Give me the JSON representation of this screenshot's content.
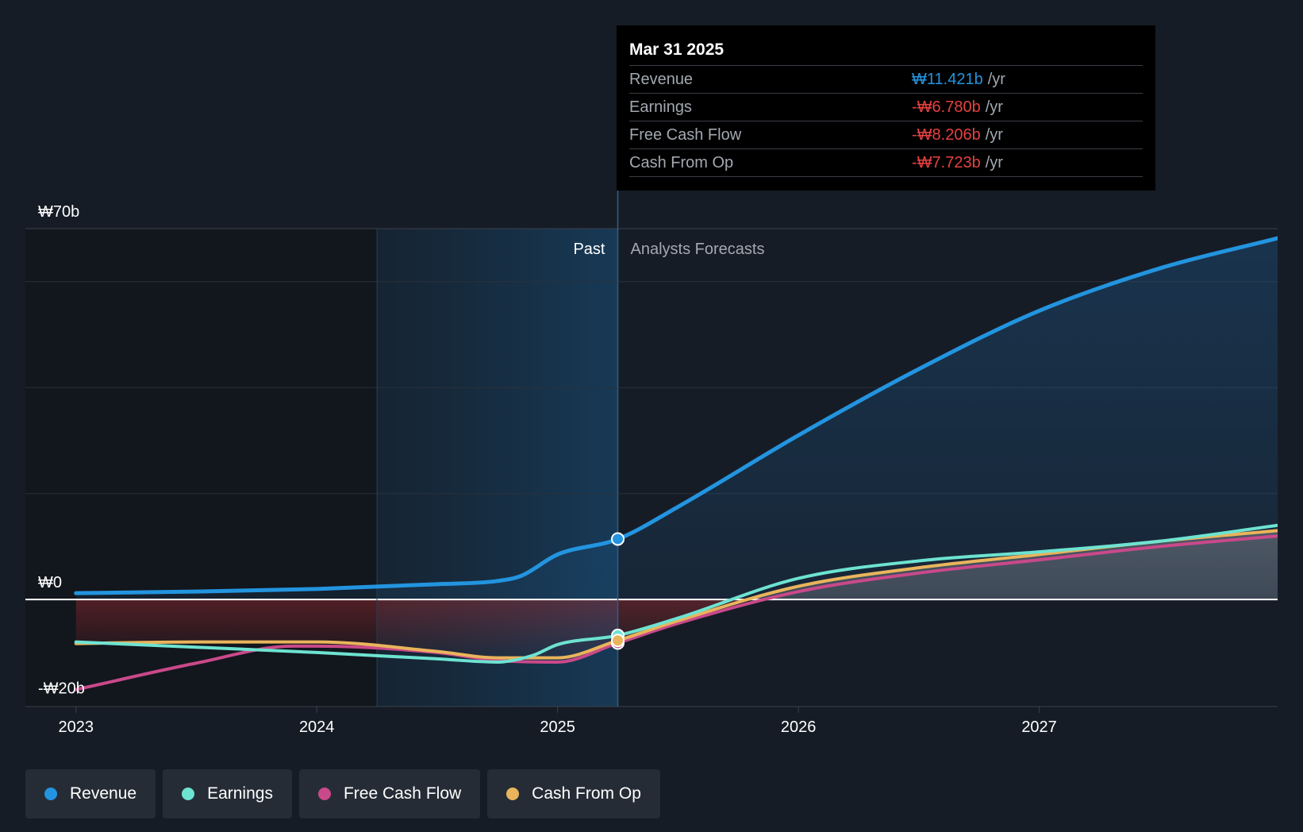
{
  "tooltip": {
    "date": "Mar 31 2025",
    "rows": [
      {
        "name": "Revenue",
        "value": "₩11.421b",
        "unit": "/yr",
        "color": "#2394df"
      },
      {
        "name": "Earnings",
        "value": "-₩6.780b",
        "unit": "/yr",
        "color": "#e64141"
      },
      {
        "name": "Free Cash Flow",
        "value": "-₩8.206b",
        "unit": "/yr",
        "color": "#e64141"
      },
      {
        "name": "Cash From Op",
        "value": "-₩7.723b",
        "unit": "/yr",
        "color": "#e64141"
      }
    ]
  },
  "legend": [
    {
      "label": "Revenue",
      "color": "#2394df"
    },
    {
      "label": "Earnings",
      "color": "#6de3d1"
    },
    {
      "label": "Free Cash Flow",
      "color": "#c9498a"
    },
    {
      "label": "Cash From Op",
      "color": "#e9b45b"
    }
  ],
  "chart_data": {
    "type": "line",
    "title": "",
    "xlabel": "",
    "ylabel": "",
    "y_tick_labels": [
      "₩70b",
      "₩0",
      "-₩20b"
    ],
    "y_tick_values": [
      70,
      0,
      -20
    ],
    "x_tick_labels": [
      "2023",
      "2024",
      "2025",
      "2026",
      "2027"
    ],
    "x_tick_values": [
      2023.0,
      2024.0,
      2025.0,
      2026.0,
      2027.0
    ],
    "xlim": [
      2022.79,
      2027.99
    ],
    "ylim": [
      -20.2,
      70
    ],
    "past_label": "Past",
    "forecast_label": "Analysts Forecasts",
    "past_start": 2024.25,
    "divider": 2025.25,
    "series": [
      {
        "name": "Revenue",
        "color": "#2394df",
        "x": [
          2023.0,
          2023.5,
          2024.0,
          2024.5,
          2024.75,
          2024.85,
          2025.0,
          2025.25,
          2025.5,
          2026.0,
          2026.5,
          2027.0,
          2027.5,
          2027.99
        ],
        "values": [
          1.2,
          1.5,
          2.0,
          2.9,
          3.5,
          4.5,
          8.5,
          11.4,
          17.5,
          31.0,
          43.5,
          54.5,
          62.5,
          68.2
        ]
      },
      {
        "name": "Earnings",
        "color": "#6de3d1",
        "x": [
          2023.0,
          2023.5,
          2024.0,
          2024.5,
          2024.75,
          2024.9,
          2025.0,
          2025.25,
          2025.5,
          2026.0,
          2026.5,
          2027.0,
          2027.5,
          2027.99
        ],
        "values": [
          -8.0,
          -9.0,
          -10.0,
          -11.2,
          -11.8,
          -10.5,
          -8.5,
          -6.78,
          -3.5,
          4.0,
          7.3,
          9.0,
          11.0,
          14.0
        ]
      },
      {
        "name": "Free Cash Flow",
        "color": "#c9498a",
        "x": [
          2023.0,
          2023.5,
          2023.9,
          2024.0,
          2024.5,
          2024.75,
          2025.0,
          2025.25,
          2025.5,
          2026.0,
          2026.5,
          2027.0,
          2027.5,
          2027.99
        ],
        "values": [
          -17.0,
          -12.0,
          -8.8,
          -8.8,
          -10.0,
          -11.5,
          -11.8,
          -8.206,
          -4.5,
          1.5,
          5.0,
          7.5,
          10.0,
          12.0
        ]
      },
      {
        "name": "Cash From Op",
        "color": "#e9b45b",
        "x": [
          2023.0,
          2023.5,
          2024.0,
          2024.5,
          2024.75,
          2025.0,
          2025.25,
          2025.5,
          2026.0,
          2026.5,
          2027.0,
          2027.5,
          2027.99
        ],
        "values": [
          -8.3,
          -8.0,
          -8.0,
          -9.8,
          -11.0,
          -11.0,
          -7.723,
          -4.0,
          2.5,
          6.0,
          8.5,
          11.0,
          13.0
        ]
      }
    ],
    "highlight": {
      "x": 2025.25,
      "values": {
        "Revenue": 11.421,
        "Earnings": -6.78,
        "Free Cash Flow": -8.206,
        "Cash From Op": -7.723
      }
    }
  }
}
